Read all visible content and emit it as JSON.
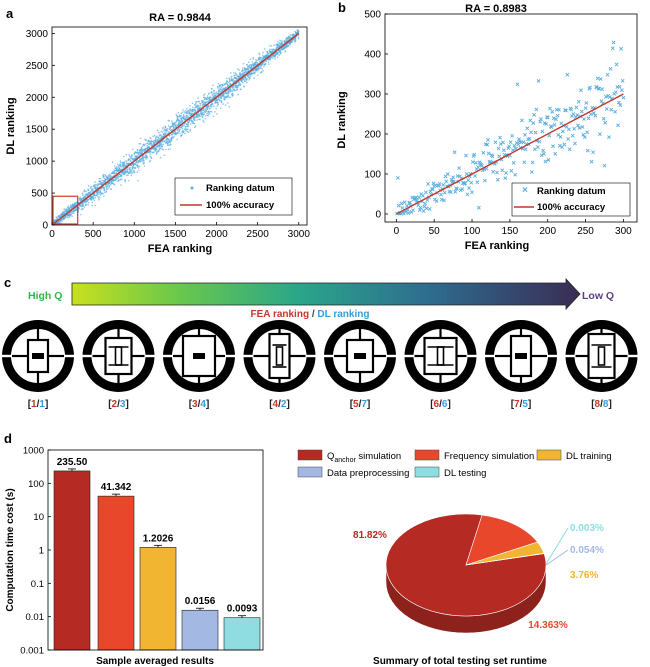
{
  "colors": {
    "scatter": "#5aaee0",
    "fit_line": "#c0392b",
    "q_anchor": "#b52a22",
    "frequency": "#e8472c",
    "dl_training": "#f2b531",
    "data_preprocessing": "#a3b9e4",
    "dl_testing": "#8fdde0",
    "fea_label": "#c0392b",
    "dl_label": "#3a9ad9",
    "high_q": "#2db84a",
    "low_q": "#5a3f86"
  },
  "panel_c": {
    "letter": "c",
    "high_q": "High Q",
    "low_q": "Low Q",
    "legend_fea": "FEA ranking",
    "legend_sep": " / ",
    "legend_dl": "DL ranking",
    "designs": [
      {
        "fea": "1",
        "dl": "1"
      },
      {
        "fea": "2",
        "dl": "3"
      },
      {
        "fea": "3",
        "dl": "4"
      },
      {
        "fea": "4",
        "dl": "2"
      },
      {
        "fea": "5",
        "dl": "7"
      },
      {
        "fea": "6",
        "dl": "6"
      },
      {
        "fea": "7",
        "dl": "5"
      },
      {
        "fea": "8",
        "dl": "8"
      }
    ]
  },
  "chart_data": [
    {
      "panel": "a",
      "type": "scatter",
      "title": "RA = 0.9844",
      "xlabel": "FEA ranking",
      "ylabel": "DL ranking",
      "xlim": [
        0,
        3100
      ],
      "ylim": [
        0,
        3100
      ],
      "xticks": [
        0,
        500,
        1000,
        1500,
        2000,
        2500,
        3000
      ],
      "yticks": [
        0,
        500,
        1000,
        1500,
        2000,
        2500,
        3000
      ],
      "legend": [
        "Ranking datum",
        "100% accuracy"
      ],
      "series": [
        {
          "name": "Ranking datum",
          "values": "dense band of ~3000 points along y = x, spread roughly ±120"
        },
        {
          "name": "100% accuracy",
          "x": [
            0,
            3000
          ],
          "y": [
            0,
            3000
          ]
        }
      ],
      "annotation": {
        "label": "zoom box (panel b region)",
        "x": [
          0,
          300
        ],
        "y": [
          0,
          450
        ]
      }
    },
    {
      "panel": "b",
      "type": "scatter",
      "title": "RA = 0.8983",
      "xlabel": "FEA ranking",
      "ylabel": "DL ranking",
      "xlim": [
        -15,
        318
      ],
      "ylim": [
        -20,
        500
      ],
      "xticks": [
        0,
        50,
        100,
        150,
        200,
        250,
        300
      ],
      "yticks": [
        0,
        100,
        200,
        300,
        400,
        500
      ],
      "legend": [
        "Ranking datum",
        "100% accuracy"
      ],
      "series": [
        {
          "name": "Ranking datum",
          "values": "~300 points scattered around y = x for FEA ranks 1–300, with outliers up to ~450"
        },
        {
          "name": "100% accuracy",
          "x": [
            0,
            300
          ],
          "y": [
            0,
            300
          ]
        }
      ]
    },
    {
      "panel": "d-left",
      "type": "bar",
      "yscale": "log",
      "ylabel": "Computation time cost (s)",
      "xlabel": "Sample averaged results",
      "ylim": [
        0.001,
        1000
      ],
      "yticks": [
        "0.001",
        "0.01",
        "0.1",
        "1",
        "10",
        "100",
        "1000"
      ],
      "categories": [
        "Q_anchor simulation",
        "Frequency simulation",
        "DL training",
        "Data preprocessing",
        "DL testing"
      ],
      "values": [
        235.5,
        41.342,
        1.2026,
        0.0156,
        0.0093
      ],
      "value_labels": [
        "235.50",
        "41.342",
        "1.2026",
        "0.0156",
        "0.0093"
      ]
    },
    {
      "panel": "d-right",
      "type": "pie",
      "title": "Summary of total testing set runtime",
      "categories": [
        "Q_anchor simulation",
        "Frequency simulation",
        "DL training",
        "Data preprocessing",
        "DL testing"
      ],
      "values": [
        81.82,
        14.363,
        3.76,
        0.054,
        0.003
      ],
      "value_labels": [
        "81.82%",
        "14.363%",
        "3.76%",
        "0.054%",
        "0.003%"
      ]
    }
  ],
  "legend_d": [
    {
      "prefix": "Q",
      "sub": "anchor",
      "suffix": " simulation",
      "key": "q_anchor"
    },
    {
      "prefix": "Frequency simulation",
      "sub": "",
      "suffix": "",
      "key": "frequency"
    },
    {
      "prefix": "DL training",
      "sub": "",
      "suffix": "",
      "key": "dl_training"
    },
    {
      "prefix": "Data preprocessing",
      "sub": "",
      "suffix": "",
      "key": "data_preprocessing"
    },
    {
      "prefix": "DL testing",
      "sub": "",
      "suffix": "",
      "key": "dl_testing"
    }
  ],
  "panel_letters": {
    "a": "a",
    "b": "b",
    "d": "d"
  }
}
